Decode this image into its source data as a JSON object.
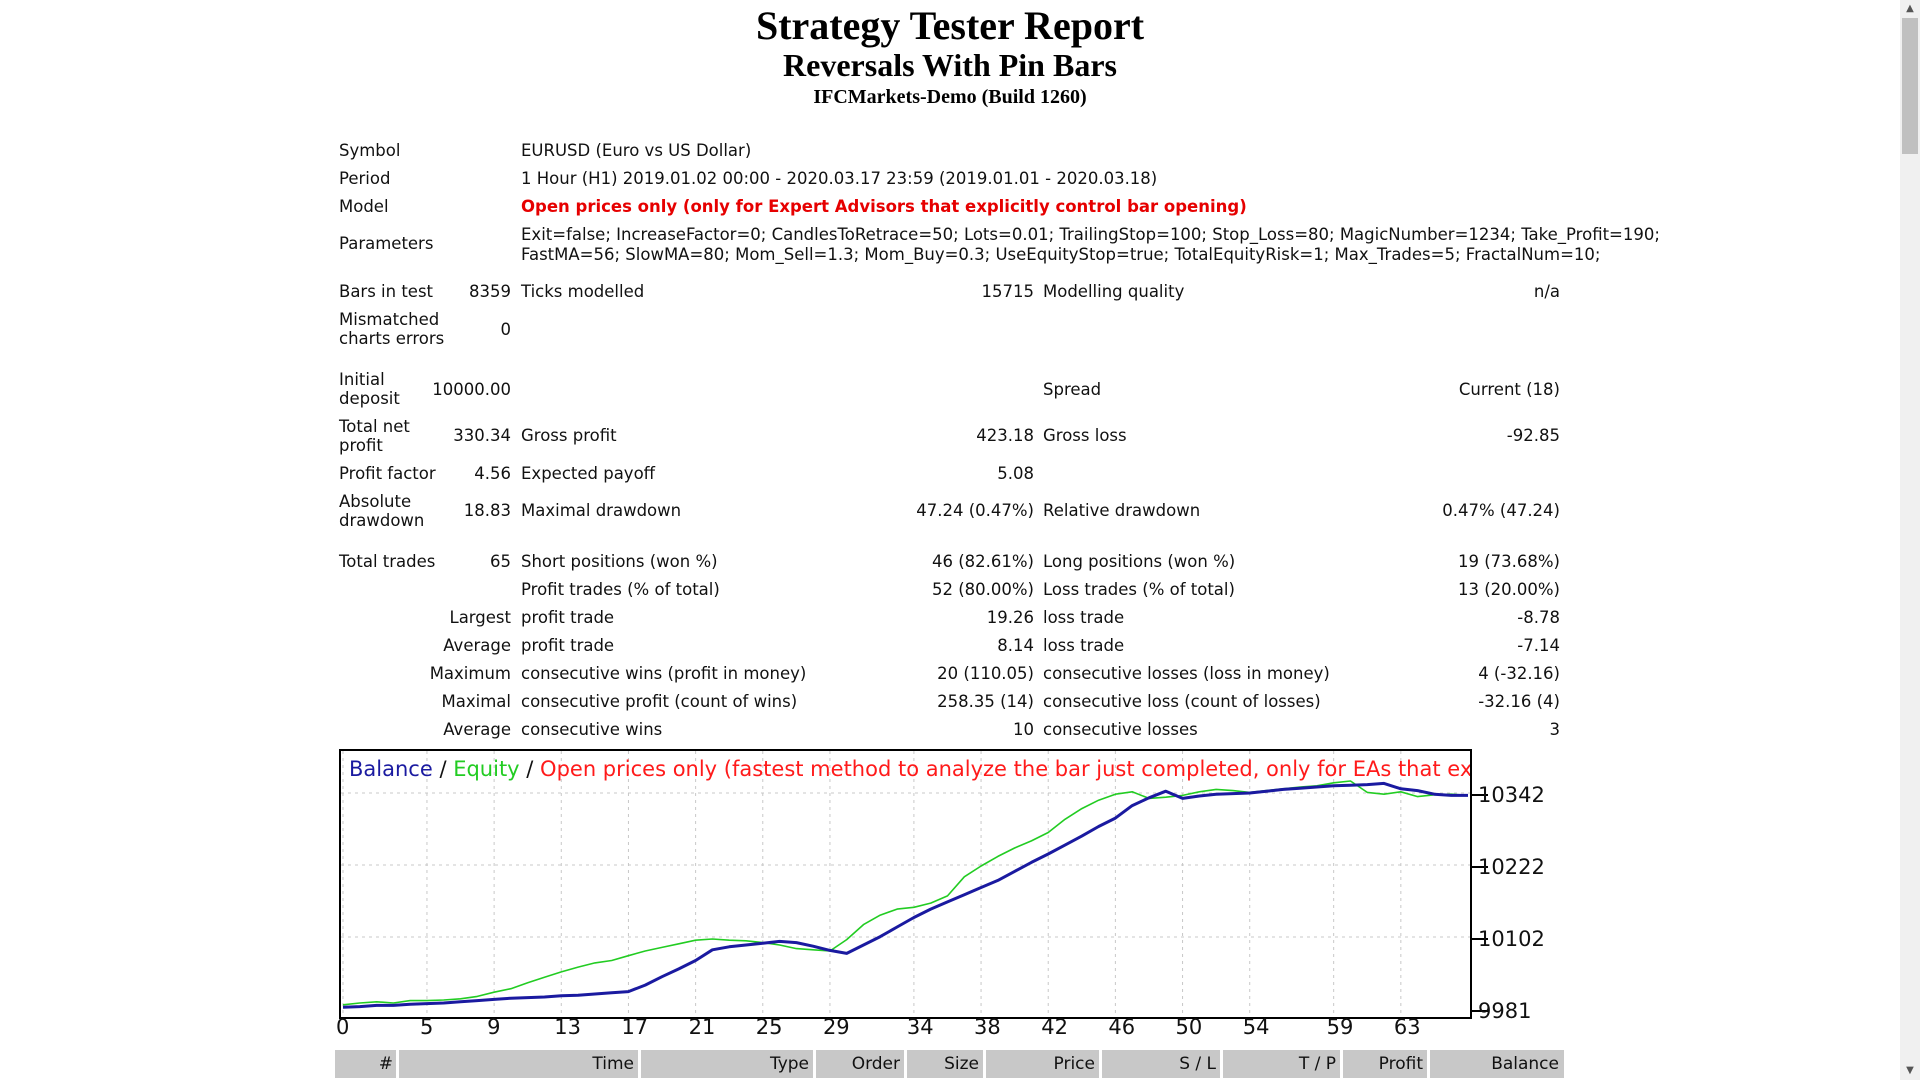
{
  "header": {
    "title": "Strategy Tester Report",
    "subtitle": "Reversals With Pin Bars",
    "server": "IFCMarkets-Demo (Build 1260)"
  },
  "summary": {
    "symbol_label": "Symbol",
    "symbol_value": "EURUSD (Euro vs US Dollar)",
    "period_label": "Period",
    "period_value": "1 Hour (H1) 2019.01.02 00:00 - 2020.03.17 23:59 (2019.01.01 - 2020.03.18)",
    "model_label": "Model",
    "model_value": "Open prices only (only for Expert Advisors that explicitly control bar opening)",
    "parameters_label": "Parameters",
    "parameters_line1": "Exit=false; IncreaseFactor=0; CandlesToRetrace=50; Lots=0.01; TrailingStop=100; Stop_Loss=80; MagicNumber=1234; Take_Profit=190;",
    "parameters_line2": "FastMA=56; SlowMA=80; Mom_Sell=1.3; Mom_Buy=0.3; UseEquityStop=true; TotalEquityRisk=1; Max_Trades=5; FractalNum=10;",
    "bars_label": "Bars in test",
    "bars_value": "8359",
    "ticks_label": "Ticks modelled",
    "ticks_value": "15715",
    "quality_label": "Modelling quality",
    "quality_value": "n/a",
    "mismatch_label1": "Mismatched",
    "mismatch_label2": "charts errors",
    "mismatch_value": "0",
    "deposit_label1": "Initial",
    "deposit_label2": "deposit",
    "deposit_value": "10000.00",
    "spread_label": "Spread",
    "spread_value": "Current (18)",
    "netprofit_label1": "Total net",
    "netprofit_label2": "profit",
    "netprofit_value": "330.34",
    "grossprofit_label": "Gross profit",
    "grossprofit_value": "423.18",
    "grossloss_label": "Gross loss",
    "grossloss_value": "-92.85",
    "pf_label": "Profit factor",
    "pf_value": "4.56",
    "payoff_label": "Expected payoff",
    "payoff_value": "5.08",
    "absdd_label1": "Absolute",
    "absdd_label2": "drawdown",
    "absdd_value": "18.83",
    "maxdd_label": "Maximal drawdown",
    "maxdd_value": "47.24 (0.47%)",
    "reldd_label": "Relative drawdown",
    "reldd_value": "0.47% (47.24)",
    "trades_label": "Total trades",
    "trades_value": "65",
    "short_label": "Short positions (won %)",
    "short_value": "46 (82.61%)",
    "long_label": "Long positions (won %)",
    "long_value": "19 (73.68%)",
    "profittrades_label": "Profit trades (% of total)",
    "profittrades_value": "52 (80.00%)",
    "losstrades_label": "Loss trades (% of total)",
    "losstrades_value": "13 (20.00%)",
    "largest_label": "Largest",
    "largest_profit_label": "profit trade",
    "largest_profit_value": "19.26",
    "largest_loss_label": "loss trade",
    "largest_loss_value": "-8.78",
    "average_label": "Average",
    "average_profit_label": "profit trade",
    "average_profit_value": "8.14",
    "average_loss_label": "loss trade",
    "average_loss_value": "-7.14",
    "maximum_label": "Maximum",
    "max_wins_label": "consecutive wins (profit in money)",
    "max_wins_value": "20 (110.05)",
    "max_losses_label": "consecutive losses (loss in money)",
    "max_losses_value": "4 (-32.16)",
    "maximal_label": "Maximal",
    "maximal_profit_label": "consecutive profit (count of wins)",
    "maximal_profit_value": "258.35 (14)",
    "maximal_loss_label": "consecutive loss (count of losses)",
    "maximal_loss_value": "-32.16 (4)",
    "average2_label": "Average",
    "avg_wins_label": "consecutive wins",
    "avg_wins_value": "10",
    "avg_losses_label": "consecutive losses",
    "avg_losses_value": "3"
  },
  "chart_data": {
    "type": "line",
    "legend": {
      "balance": "Balance",
      "sep": " / ",
      "equity": "Equity",
      "model": "Open prices only (fastest method to analyze the bar just completed, only for EAs that explicitly control b"
    },
    "colors": {
      "balance": "#1a1aa0",
      "equity": "#22cc22",
      "model_text": "#ff1a1a"
    },
    "ylim": [
      9981,
      10362
    ],
    "y_ticks": [
      "10342",
      "10222",
      "10102",
      "9981"
    ],
    "x_ticks": [
      "0",
      "5",
      "9",
      "13",
      "17",
      "21",
      "25",
      "29",
      "34",
      "38",
      "42",
      "46",
      "50",
      "54",
      "59",
      "63"
    ],
    "xlim": [
      0,
      67
    ],
    "series": [
      {
        "name": "Balance",
        "x": [
          0,
          1,
          2,
          3,
          4,
          5,
          6,
          7,
          8,
          9,
          10,
          11,
          12,
          13,
          14,
          15,
          16,
          17,
          18,
          19,
          20,
          21,
          22,
          23,
          24,
          25,
          26,
          27,
          28,
          29,
          30,
          31,
          32,
          33,
          34,
          35,
          36,
          37,
          38,
          39,
          40,
          41,
          42,
          43,
          44,
          45,
          46,
          47,
          48,
          49,
          50,
          51,
          52,
          53,
          54,
          55,
          56,
          57,
          58,
          59,
          60,
          61,
          62,
          63,
          64,
          65,
          66,
          67
        ],
        "values": [
          9984,
          9985,
          9987,
          9987,
          9989,
          9990,
          9991,
          9993,
          9995,
          9997,
          9999,
          10000,
          10001,
          10003,
          10004,
          10006,
          10008,
          10010,
          10021,
          10035,
          10048,
          10062,
          10080,
          10085,
          10088,
          10091,
          10094,
          10092,
          10086,
          10079,
          10074,
          10088,
          10102,
          10118,
          10134,
          10148,
          10160,
          10172,
          10184,
          10196,
          10211,
          10226,
          10240,
          10255,
          10270,
          10286,
          10300,
          10321,
          10334,
          10345,
          10333,
          10337,
          10340,
          10341,
          10342,
          10345,
          10348,
          10350,
          10352,
          10354,
          10355,
          10356,
          10358,
          10349,
          10346,
          10340,
          10338,
          10338
        ]
      },
      {
        "name": "Equity",
        "x": [
          0,
          1,
          2,
          3,
          4,
          5,
          6,
          7,
          8,
          9,
          10,
          11,
          12,
          13,
          14,
          15,
          16,
          17,
          18,
          19,
          20,
          21,
          22,
          23,
          24,
          25,
          26,
          27,
          28,
          29,
          30,
          31,
          32,
          33,
          34,
          35,
          36,
          37,
          38,
          39,
          40,
          41,
          42,
          43,
          44,
          45,
          46,
          47,
          48,
          49,
          50,
          51,
          52,
          53,
          54,
          55,
          56,
          57,
          58,
          59,
          60,
          61,
          62,
          63,
          64,
          65,
          66,
          67
        ],
        "values": [
          9988,
          9991,
          9993,
          9991,
          9995,
          9995,
          9996,
          9998,
          10002,
          10009,
          10015,
          10025,
          10034,
          10043,
          10051,
          10058,
          10062,
          10070,
          10078,
          10084,
          10090,
          10096,
          10098,
          10096,
          10095,
          10092,
          10088,
          10082,
          10080,
          10078,
          10097,
          10122,
          10138,
          10148,
          10151,
          10158,
          10170,
          10202,
          10220,
          10236,
          10250,
          10262,
          10276,
          10298,
          10316,
          10330,
          10340,
          10344,
          10333,
          10335,
          10338,
          10344,
          10348,
          10346,
          10343,
          10346,
          10349,
          10352,
          10354,
          10359,
          10362,
          10343,
          10340,
          10344,
          10336,
          10339,
          10340,
          10338
        ]
      }
    ]
  },
  "trades_table": {
    "headers": [
      "#",
      "Time",
      "Type",
      "Order",
      "Size",
      "Price",
      "S / L",
      "T / P",
      "Profit",
      "Balance"
    ]
  },
  "scrollbar": {
    "up_icon": "▲",
    "down_icon": "▼"
  }
}
